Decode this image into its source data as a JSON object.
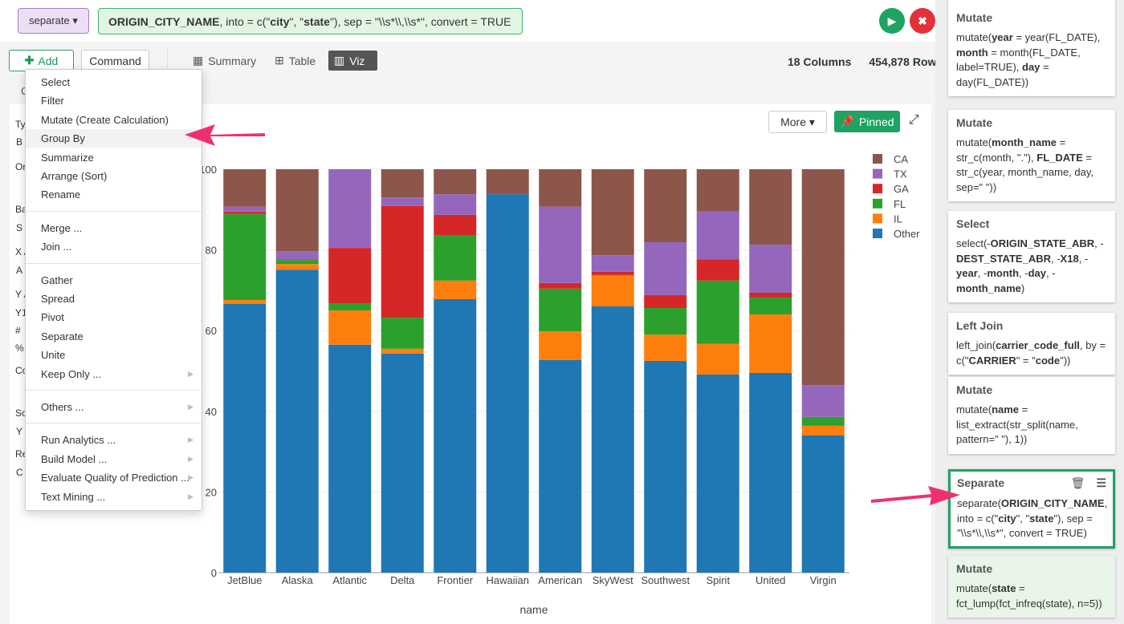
{
  "header": {
    "function_label": "separate ▾",
    "code": [
      {
        "t": "ORIGIN_CITY_NAME",
        "b": true
      },
      {
        "t": ", into = c(\"",
        "b": false
      },
      {
        "t": "city",
        "b": true
      },
      {
        "t": "\", \"",
        "b": false
      },
      {
        "t": "state",
        "b": true
      },
      {
        "t": "\"), sep = \"\\\\s*\\\\,\\\\s*\", convert = TRUE",
        "b": false
      }
    ]
  },
  "toolbar": {
    "add_label": "Add",
    "command_label": "Command",
    "tabs": [
      {
        "label": "Summary",
        "icon": "summary-icon"
      },
      {
        "label": "Table",
        "icon": "table-icon"
      },
      {
        "label": "Viz",
        "icon": "bar-chart-icon",
        "active": true
      }
    ],
    "columns": "18 Columns",
    "rows": "454,878 Rows"
  },
  "subtabs_fragments": {
    "left": "C",
    "right": "ew"
  },
  "left_panel_fragments": [
    "Ty",
    "B",
    "Or",
    "",
    "Ba",
    "S",
    "X A",
    "A",
    "Y A",
    "Y1",
    "#",
    "%",
    "Co",
    "",
    "So",
    "Y",
    "Re",
    "C"
  ],
  "chart_buttons": {
    "more": "More ▾",
    "pinned": "Pinned"
  },
  "menu": {
    "groups": [
      [
        "Select",
        "Filter",
        "Mutate (Create Calculation)",
        "Group By",
        "Summarize",
        "Arrange (Sort)",
        "Rename"
      ],
      [
        "Merge ...",
        "Join ..."
      ],
      [
        "Gather",
        "Spread",
        "Pivot",
        "Separate",
        "Unite",
        "Keep Only ..."
      ],
      [
        "Others ..."
      ],
      [
        "Run Analytics ...",
        "Build Model ...",
        "Evaluate Quality of Prediction ...",
        "Text Mining ..."
      ]
    ],
    "highlighted": "Group By",
    "submenus": [
      "Keep Only ...",
      "Others ...",
      "Run Analytics ...",
      "Build Model ...",
      "Evaluate Quality of Prediction ...",
      "Text Mining ..."
    ]
  },
  "steps": [
    {
      "title": "Mutate",
      "code": [
        {
          "t": "mutate(",
          "b": false
        },
        {
          "t": "year",
          "b": true
        },
        {
          "t": " = year(FL_DATE), ",
          "b": false
        },
        {
          "t": "month",
          "b": true
        },
        {
          "t": " = month(FL_DATE, label=TRUE), ",
          "b": false
        },
        {
          "t": "day",
          "b": true
        },
        {
          "t": " = day(FL_DATE))",
          "b": false
        }
      ]
    },
    {
      "title": "Mutate",
      "code": [
        {
          "t": "mutate(",
          "b": false
        },
        {
          "t": "month_name",
          "b": true
        },
        {
          "t": " = str_c(month, \".\"), ",
          "b": false
        },
        {
          "t": "FL_DATE",
          "b": true
        },
        {
          "t": " = str_c(year, month_name, day, sep=\" \"))",
          "b": false
        }
      ]
    },
    {
      "title": "Select",
      "code": [
        {
          "t": "select(-",
          "b": false
        },
        {
          "t": "ORIGIN_STATE_ABR",
          "b": true
        },
        {
          "t": ", -",
          "b": false
        },
        {
          "t": "DEST_STATE_ABR",
          "b": true
        },
        {
          "t": ", -",
          "b": false
        },
        {
          "t": "X18",
          "b": true
        },
        {
          "t": ", -",
          "b": false
        },
        {
          "t": "year",
          "b": true
        },
        {
          "t": ", -",
          "b": false
        },
        {
          "t": "month",
          "b": true
        },
        {
          "t": ", -",
          "b": false
        },
        {
          "t": "day",
          "b": true
        },
        {
          "t": ", -",
          "b": false
        },
        {
          "t": "month_name",
          "b": true
        },
        {
          "t": ")",
          "b": false
        }
      ]
    },
    {
      "title": "Left Join",
      "code": [
        {
          "t": "left_join(",
          "b": false
        },
        {
          "t": "carrier_code_full",
          "b": true
        },
        {
          "t": ", by = c(\"",
          "b": false
        },
        {
          "t": "CARRIER",
          "b": true
        },
        {
          "t": "\" = \"",
          "b": false
        },
        {
          "t": "code",
          "b": true
        },
        {
          "t": "\"))",
          "b": false
        }
      ]
    },
    {
      "title": "Mutate",
      "code": [
        {
          "t": "mutate(",
          "b": false
        },
        {
          "t": "name",
          "b": true
        },
        {
          "t": " = list_extract(str_split(name, pattern=\" \"), 1))",
          "b": false
        }
      ]
    },
    {
      "title": "Separate",
      "selected": true,
      "code": [
        {
          "t": "separate(",
          "b": false
        },
        {
          "t": "ORIGIN_CITY_NAME",
          "b": true
        },
        {
          "t": ", into = c(\"",
          "b": false
        },
        {
          "t": "city",
          "b": true
        },
        {
          "t": "\", \"",
          "b": false
        },
        {
          "t": "state",
          "b": true
        },
        {
          "t": "\"), sep = \"\\\\s*\\\\,\\\\s*\", convert = TRUE)",
          "b": false
        }
      ]
    },
    {
      "title": "Mutate",
      "next": true,
      "code": [
        {
          "t": "mutate(",
          "b": false
        },
        {
          "t": "state",
          "b": true
        },
        {
          "t": " = fct_lump(fct_infreq(state), n=5))",
          "b": false
        }
      ]
    }
  ],
  "colors": {
    "accent": "#1ea362",
    "danger": "#e4303a",
    "arrow": "#f0306e"
  },
  "chart_data": {
    "type": "bar",
    "stacked": true,
    "xlabel": "name",
    "ylabel": "",
    "ylim": [
      0,
      100
    ],
    "yticks": [
      0,
      20,
      40,
      60,
      80,
      100
    ],
    "grid": true,
    "legend_position": "right",
    "categories": [
      "JetBlue",
      "Alaska",
      "Atlantic",
      "Delta",
      "Frontier",
      "Hawaiian",
      "American",
      "SkyWest",
      "Southwest",
      "Spirit",
      "United",
      "Virgin"
    ],
    "series": [
      {
        "name": "Other",
        "color": "#1f77b4",
        "values": [
          66.6,
          75.1,
          56.5,
          54.3,
          67.8,
          93.8,
          52.7,
          66.0,
          52.5,
          49.1,
          49.5,
          34.0
        ]
      },
      {
        "name": "IL",
        "color": "#ff7f0e",
        "values": [
          1.0,
          1.4,
          8.5,
          1.2,
          4.6,
          0,
          7.1,
          7.6,
          6.5,
          7.6,
          14.5,
          2.4
        ]
      },
      {
        "name": "FL",
        "color": "#2ca02c",
        "values": [
          21.3,
          1.0,
          1.8,
          7.7,
          11.3,
          0,
          10.6,
          0.2,
          6.6,
          15.7,
          4.2,
          2.2
        ]
      },
      {
        "name": "GA",
        "color": "#d62728",
        "values": [
          0.6,
          0.2,
          13.7,
          27.7,
          5.0,
          0,
          1.4,
          0.8,
          3.2,
          5.3,
          1.2,
          0
        ]
      },
      {
        "name": "TX",
        "color": "#9467bd",
        "values": [
          1.2,
          2.0,
          19.5,
          2.1,
          5.1,
          0,
          18.9,
          4.1,
          13.1,
          11.8,
          11.9,
          7.9
        ]
      },
      {
        "name": "CA",
        "color": "#8c564b",
        "values": [
          9.3,
          20.3,
          0,
          7.0,
          6.2,
          6.2,
          9.3,
          21.3,
          18.1,
          10.5,
          18.7,
          53.5
        ]
      }
    ],
    "legend_order": [
      "CA",
      "TX",
      "GA",
      "FL",
      "IL",
      "Other"
    ]
  }
}
